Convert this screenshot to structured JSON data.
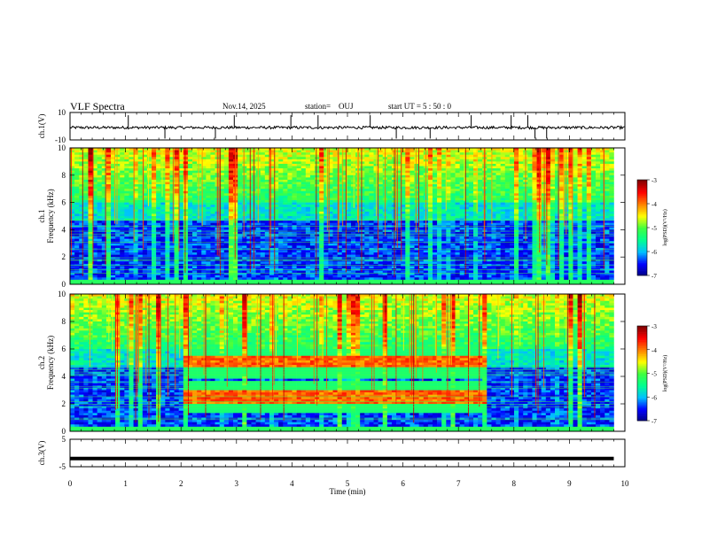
{
  "header": {
    "title": "VLF Spectra",
    "date": "Nov.14, 2025",
    "station_label": "station=",
    "station": "OUJ",
    "start_label": "start  UT  =",
    "start_time": "5 : 50 : 0"
  },
  "chart_data": [
    {
      "id": "ch1-waveform",
      "type": "line",
      "ylabel": "ch.1(V)",
      "ylim": [
        -10,
        10
      ],
      "yticks": [
        "10",
        "-10"
      ],
      "xlim": [
        0,
        10
      ],
      "baseline": -1,
      "noise_amplitude": 1,
      "spike_times": [
        1.05,
        1.71,
        2.62,
        2.96,
        3.98,
        4.47,
        5.41,
        5.88,
        6.49,
        7.23,
        7.95,
        8.25,
        8.38,
        8.59
      ]
    },
    {
      "id": "ch1-spectrogram",
      "type": "heatmap",
      "ylabel": "ch.1",
      "ylabel2": "Frequency (kHz)",
      "ylim": [
        0,
        10
      ],
      "yticks": [
        "0",
        "2",
        "4",
        "6",
        "8",
        "10"
      ],
      "xlim": [
        0,
        9.8
      ],
      "colorbar": {
        "label": "log(PSD)(V²/Hz)",
        "range": [
          -7,
          -3
        ],
        "ticks": [
          "-3",
          "-4",
          "-5",
          "-6",
          "-7"
        ]
      }
    },
    {
      "id": "ch2-spectrogram",
      "type": "heatmap",
      "ylabel": "ch.2",
      "ylabel2": "Frequency (kHz)",
      "ylim": [
        0,
        10
      ],
      "yticks": [
        "0",
        "2",
        "4",
        "6",
        "8",
        "10"
      ],
      "xlim": [
        0,
        9.8
      ],
      "bands": [
        {
          "t_start": 2.07,
          "t_end": 7.52,
          "freq_khz": 5.1
        },
        {
          "t_start": 2.07,
          "t_end": 7.52,
          "freq_khz": 2.5
        }
      ],
      "colorbar": {
        "label": "log(PSD)(V²/Hz)",
        "range": [
          -7,
          -3
        ],
        "ticks": [
          "-3",
          "-4",
          "-5",
          "-6",
          "-7"
        ]
      }
    },
    {
      "id": "ch3-waveform",
      "type": "line",
      "ylabel": "ch.3(V)",
      "ylim": [
        -5,
        5
      ],
      "yticks": [
        "5",
        "-5"
      ],
      "xlim": [
        0,
        10
      ],
      "constant_value": -2
    }
  ],
  "x_axis": {
    "label": "Time  (min)",
    "ticks": [
      "0",
      "1",
      "2",
      "3",
      "4",
      "5",
      "6",
      "7",
      "8",
      "9",
      "10"
    ]
  },
  "colors": {
    "colormap": [
      "#000080",
      "#0000ff",
      "#00c0ff",
      "#00ff90",
      "#40ff40",
      "#ffff00",
      "#ff8000",
      "#ff0000",
      "#800000"
    ]
  }
}
